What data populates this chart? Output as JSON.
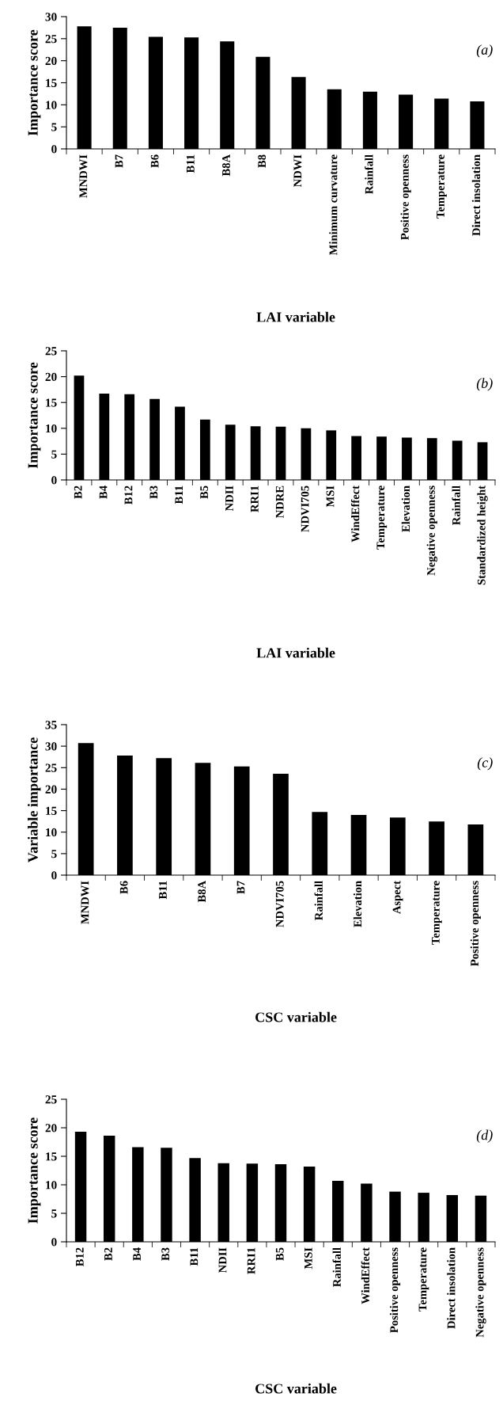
{
  "chart_data": [
    {
      "type": "bar",
      "xlabel": "LAI variable",
      "ylabel": "Importance score",
      "annotations": [
        "(a)"
      ],
      "color": "#000000",
      "ylim": [
        0,
        30
      ],
      "yticks": [
        0,
        5,
        10,
        15,
        20,
        25,
        30
      ],
      "categories": [
        "MNDWI",
        "B7",
        "B6",
        "B11",
        "B8A",
        "B8",
        "NDWI",
        "Minimum curvature",
        "Rainfall",
        "Positive openness",
        "Temperature",
        "Direct insolation"
      ],
      "values": [
        27.8,
        27.5,
        25.4,
        25.3,
        24.4,
        20.9,
        16.3,
        13.5,
        13.0,
        12.3,
        11.4,
        10.8
      ]
    },
    {
      "type": "bar",
      "xlabel": "LAI variable",
      "ylabel": "Importance score",
      "annotations": [
        "(b)"
      ],
      "color": "#000000",
      "ylim": [
        0,
        25
      ],
      "yticks": [
        0,
        5,
        10,
        15,
        20,
        25
      ],
      "categories": [
        "B2",
        "B4",
        "B12",
        "B3",
        "B11",
        "B5",
        "NDII",
        "RRI1",
        "NDRE",
        "NDVI705",
        "MSI",
        "WindEffect",
        "Temperature",
        "Elevation",
        "Negative openness",
        "Rainfall",
        "Standardized height"
      ],
      "values": [
        20.2,
        16.7,
        16.6,
        15.7,
        14.2,
        11.7,
        10.7,
        10.4,
        10.3,
        10.0,
        9.6,
        8.5,
        8.4,
        8.2,
        8.1,
        7.6,
        7.3
      ]
    },
    {
      "type": "bar",
      "xlabel": "CSC variable",
      "ylabel": "Variable importance",
      "annotations": [
        "(c)"
      ],
      "color": "#000000",
      "ylim": [
        0,
        35
      ],
      "yticks": [
        0,
        5,
        10,
        15,
        20,
        25,
        30,
        35
      ],
      "categories": [
        "MNDWI",
        "B6",
        "B11",
        "B8A",
        "B7",
        "NDVI705",
        "Rainfall",
        "Elevation",
        "Aspect",
        "Temperature",
        "Positive openness"
      ],
      "values": [
        30.7,
        27.8,
        27.2,
        26.1,
        25.3,
        23.6,
        14.7,
        14.0,
        13.4,
        12.5,
        11.8
      ]
    },
    {
      "type": "bar",
      "xlabel": "CSC variable",
      "ylabel": "Importance score",
      "annotations": [
        "(d)"
      ],
      "color": "#000000",
      "ylim": [
        0,
        25
      ],
      "yticks": [
        0,
        5,
        10,
        15,
        20,
        25
      ],
      "categories": [
        "B12",
        "B2",
        "B4",
        "B3",
        "B11",
        "NDII",
        "RRI1",
        "B5",
        "MSI",
        "Rainfall",
        "WindEffect",
        "Positive openness",
        "Temperature",
        "Direct insolation",
        "Negative openness"
      ],
      "values": [
        19.3,
        18.6,
        16.6,
        16.5,
        14.7,
        13.8,
        13.7,
        13.6,
        13.2,
        10.7,
        10.2,
        8.8,
        8.6,
        8.2,
        8.1
      ]
    }
  ]
}
